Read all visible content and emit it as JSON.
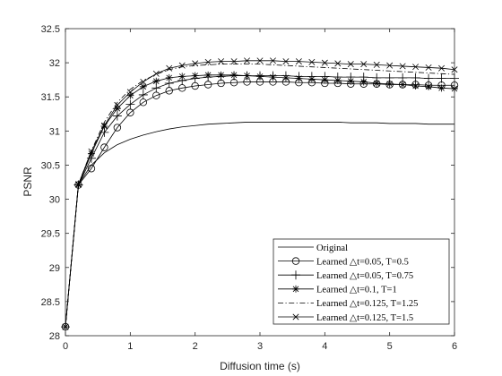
{
  "chart_data": {
    "type": "line",
    "xlabel": "Diffusion time (s)",
    "ylabel": "PSNR",
    "xlim": [
      0,
      6
    ],
    "ylim": [
      28,
      32.5
    ],
    "xticks": [
      "0",
      "1",
      "2",
      "3",
      "4",
      "5",
      "6"
    ],
    "yticks": [
      "28",
      "28.5",
      "29",
      "29.5",
      "30",
      "30.5",
      "31",
      "31.5",
      "32",
      "32.5"
    ],
    "grid": false,
    "legend_position": "bottom-right",
    "x": [
      0,
      0.2,
      0.4,
      0.6,
      0.8,
      1.0,
      1.2,
      1.4,
      1.6,
      1.8,
      2.0,
      2.2,
      2.4,
      2.6,
      2.8,
      3.0,
      3.2,
      3.4,
      3.6,
      3.8,
      4.0,
      4.2,
      4.4,
      4.6,
      4.8,
      5.0,
      5.2,
      5.4,
      5.6,
      5.8,
      6.0
    ],
    "series": [
      {
        "name": "Original",
        "marker": "none",
        "dash": "solid",
        "values": [
          28.13,
          30.22,
          30.5,
          30.68,
          30.8,
          30.88,
          30.94,
          30.99,
          31.03,
          31.06,
          31.08,
          31.1,
          31.11,
          31.12,
          31.13,
          31.13,
          31.13,
          31.13,
          31.13,
          31.13,
          31.13,
          31.13,
          31.12,
          31.12,
          31.12,
          31.11,
          31.11,
          31.11,
          31.1,
          31.1,
          31.1
        ]
      },
      {
        "name": "Learned △t=0.05, T=0.5",
        "marker": "circle",
        "dash": "solid",
        "values": [
          28.13,
          30.21,
          30.45,
          30.76,
          31.05,
          31.27,
          31.42,
          31.52,
          31.59,
          31.63,
          31.66,
          31.68,
          31.7,
          31.71,
          31.72,
          31.72,
          31.72,
          31.72,
          31.71,
          31.71,
          31.7,
          31.7,
          31.69,
          31.69,
          31.69,
          31.68,
          31.68,
          31.68,
          31.67,
          31.67,
          31.67
        ]
      },
      {
        "name": "Learned △t=0.05, T=0.75",
        "marker": "plus",
        "dash": "solid",
        "values": [
          28.13,
          30.21,
          30.6,
          30.98,
          31.22,
          31.39,
          31.53,
          31.63,
          31.7,
          31.74,
          31.77,
          31.79,
          31.8,
          31.81,
          31.81,
          31.81,
          31.81,
          31.81,
          31.8,
          31.8,
          31.8,
          31.79,
          31.79,
          31.79,
          31.78,
          31.78,
          31.78,
          31.78,
          31.77,
          31.77,
          31.77
        ]
      },
      {
        "name": "Learned △t=0.1, T=1",
        "marker": "asterisk",
        "dash": "solid",
        "values": [
          28.13,
          30.21,
          30.67,
          31.07,
          31.33,
          31.52,
          31.65,
          31.73,
          31.78,
          31.8,
          31.81,
          31.82,
          31.82,
          31.82,
          31.81,
          31.8,
          31.79,
          31.78,
          31.77,
          31.76,
          31.75,
          31.74,
          31.73,
          31.72,
          31.7,
          31.69,
          31.68,
          31.66,
          31.65,
          31.63,
          31.62
        ]
      },
      {
        "name": "Learned △t=0.125, T=1.25",
        "marker": "none",
        "dash": "dashdot",
        "values": [
          28.13,
          30.22,
          30.71,
          31.13,
          31.42,
          31.61,
          31.74,
          31.83,
          31.9,
          31.94,
          31.96,
          31.97,
          31.98,
          31.98,
          31.98,
          31.98,
          31.97,
          31.96,
          31.95,
          31.94,
          31.93,
          31.92,
          31.91,
          31.9,
          31.89,
          31.88,
          31.87,
          31.86,
          31.85,
          31.84,
          31.83
        ]
      },
      {
        "name": "Learned △t=0.125, T=1.5",
        "marker": "cross",
        "dash": "solid",
        "values": [
          28.13,
          30.22,
          30.7,
          31.08,
          31.38,
          31.57,
          31.72,
          31.84,
          31.92,
          31.96,
          31.99,
          32.01,
          32.02,
          32.02,
          32.03,
          32.03,
          32.03,
          32.02,
          32.02,
          32.01,
          32.0,
          31.99,
          31.98,
          31.98,
          31.97,
          31.96,
          31.95,
          31.94,
          31.93,
          31.92,
          31.9
        ]
      }
    ]
  }
}
